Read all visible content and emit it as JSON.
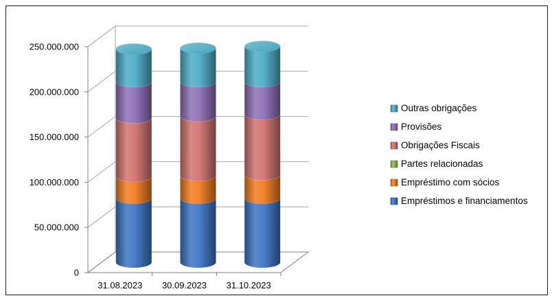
{
  "chart_data": {
    "type": "bar",
    "stacked": true,
    "style": "3d-cylinder",
    "categories": [
      "31.08.2023",
      "30.09.2023",
      "31.10.2023"
    ],
    "series": [
      {
        "name": "Empréstimos e financiamentos",
        "values": [
          71000000,
          71000000,
          71000000
        ],
        "color": "#3d75c4"
      },
      {
        "name": "Empréstimo com sócios",
        "values": [
          24000000,
          25000000,
          26000000
        ],
        "color": "#f07c1f"
      },
      {
        "name": "Partes relacionadas",
        "values": [
          0,
          0,
          0
        ],
        "color": "#8db84a"
      },
      {
        "name": "Obrigações Fiscais",
        "values": [
          65000000,
          66000000,
          67000000
        ],
        "color": "#d27370"
      },
      {
        "name": "Provisões",
        "values": [
          40000000,
          38000000,
          36000000
        ],
        "color": "#8e6fb6"
      },
      {
        "name": "Outras obrigações",
        "values": [
          36000000,
          37000000,
          39000000
        ],
        "color": "#4cadc6"
      }
    ],
    "y_ticks": [
      "0",
      "50.000.000",
      "100.000.000",
      "150.000.000",
      "200.000.000",
      "250.000.000"
    ],
    "ylim": [
      0,
      250000000
    ],
    "grid": true,
    "legend_position": "right"
  }
}
